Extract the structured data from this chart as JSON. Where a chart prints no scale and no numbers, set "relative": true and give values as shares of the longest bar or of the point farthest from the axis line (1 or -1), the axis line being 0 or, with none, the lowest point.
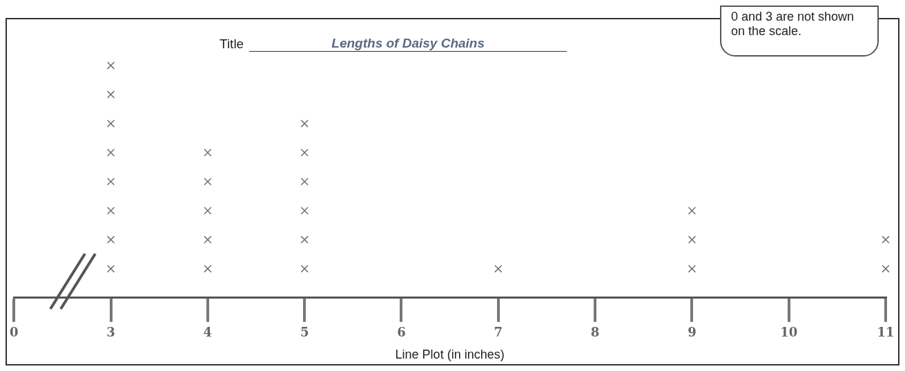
{
  "chart_data": {
    "type": "scatter",
    "title": "Lengths of Daisy Chains",
    "xlabel": "Line Plot (in inches)",
    "annotations": [
      "Title",
      "0 and 3 are not shown on the scale."
    ],
    "categories": [
      "0",
      "3",
      "4",
      "5",
      "6",
      "7",
      "8",
      "9",
      "10",
      "11"
    ],
    "relative": true,
    "tick_labels": "x",
    "marker": "cross",
    "series": [
      {
        "color": "#707070",
        "x": [
          "3",
          "3",
          "3",
          "3",
          "3",
          "3",
          "3",
          "3",
          "4",
          "4",
          "4",
          "4",
          "4",
          "5",
          "5",
          "5",
          "5",
          "5",
          "5",
          "7",
          "9",
          "9",
          "9",
          "11",
          "11"
        ],
        "values": [
          0.125,
          0.25,
          0.375,
          0.5,
          0.625,
          0.75,
          0.875,
          1,
          0.125,
          0.25,
          0.375,
          0.5,
          0.625,
          0.125,
          0.25,
          0.375,
          0.5,
          0.625,
          0.75,
          0.125,
          0.125,
          0.25,
          0.375,
          0.125,
          0.25
        ]
      }
    ]
  }
}
